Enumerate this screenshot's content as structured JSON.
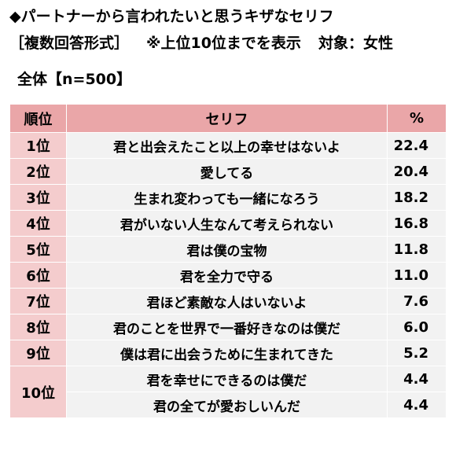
{
  "title": "◆パートナーから言われたいと思うキザなセリフ",
  "subtitle": {
    "format": "［複数回答形式］",
    "note": "※上位10位までを表示",
    "target": "対象：女性"
  },
  "group_label": "全体【n=500】",
  "table": {
    "headers": {
      "rank": "順位",
      "line": "セリフ",
      "pct": "%"
    },
    "rows": [
      {
        "rank": "1位",
        "line": "君と出会えたこと以上の幸せはないよ",
        "pct": "22.4"
      },
      {
        "rank": "2位",
        "line": "愛してる",
        "pct": "20.4"
      },
      {
        "rank": "3位",
        "line": "生まれ変わっても一緒になろう",
        "pct": "18.2"
      },
      {
        "rank": "4位",
        "line": "君がいない人生なんて考えられない",
        "pct": "16.8"
      },
      {
        "rank": "5位",
        "line": "君は僕の宝物",
        "pct": "11.8"
      },
      {
        "rank": "6位",
        "line": "君を全力で守る",
        "pct": "11.0"
      },
      {
        "rank": "7位",
        "line": "君ほど素敵な人はいないよ",
        "pct": "7.6"
      },
      {
        "rank": "8位",
        "line": "君のことを世界で一番好きなのは僕だ",
        "pct": "6.0"
      },
      {
        "rank": "9位",
        "line": "僕は君に出会うために生まれてきた",
        "pct": "5.2"
      },
      {
        "rank": "10位",
        "line": "君を幸せにできるのは僕だ",
        "pct": "4.4"
      },
      {
        "rank": "10位",
        "line": "君の全てが愛おしいんだ",
        "pct": "4.4"
      }
    ]
  },
  "colors": {
    "header_bg": "#eaa6a8",
    "rank_bg": "#f4cccd",
    "body_bg": "#f2f2f2"
  }
}
